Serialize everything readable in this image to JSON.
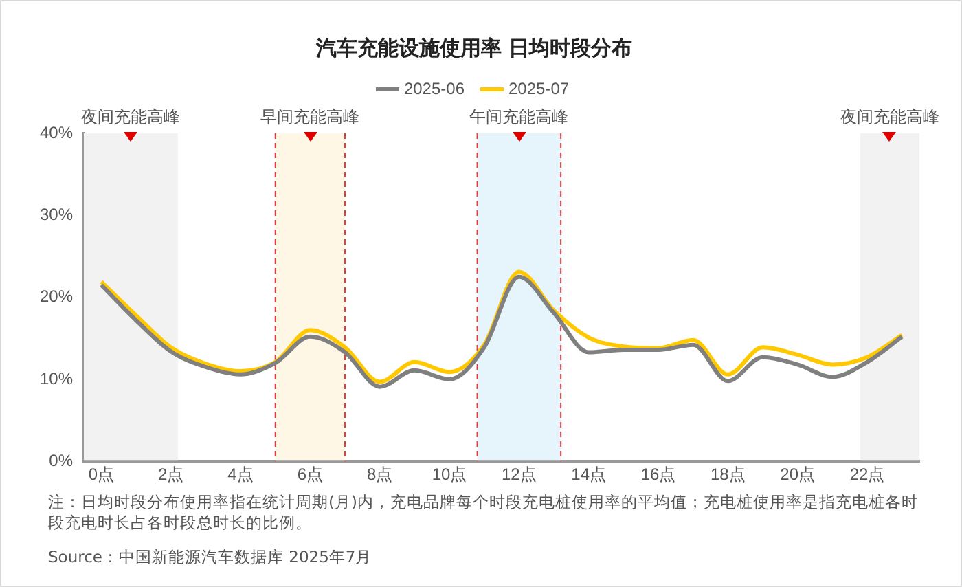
{
  "chart_data": {
    "type": "line",
    "title": "汽车充能设施使用率 日均时段分布",
    "x": [
      0,
      1,
      2,
      3,
      4,
      5,
      6,
      7,
      8,
      9,
      10,
      11,
      12,
      13,
      14,
      15,
      16,
      17,
      18,
      19,
      20,
      21,
      22,
      23
    ],
    "series": [
      {
        "name": "2025-06",
        "color": "#808080",
        "values": [
          21.5,
          17.2,
          13.4,
          11.5,
          10.6,
          12.0,
          15.2,
          13.3,
          9.1,
          11.1,
          10.0,
          13.9,
          22.5,
          18.1,
          13.3,
          13.6,
          13.6,
          14.2,
          9.8,
          12.7,
          11.8,
          10.3,
          12.1,
          15.2
        ]
      },
      {
        "name": "2025-07",
        "color": "#ffc800",
        "values": [
          21.9,
          17.8,
          13.9,
          11.9,
          11.0,
          12.1,
          16.0,
          13.9,
          9.7,
          12.1,
          10.9,
          14.2,
          23.1,
          18.4,
          15.1,
          14.0,
          13.8,
          14.8,
          10.6,
          13.9,
          13.0,
          11.8,
          12.7,
          15.4
        ]
      }
    ],
    "xlim": [
      -0.5,
      23.5
    ],
    "xticks": [
      {
        "value": 0,
        "label": "0点"
      },
      {
        "value": 2,
        "label": "2点"
      },
      {
        "value": 4,
        "label": "4点"
      },
      {
        "value": 6,
        "label": "6点"
      },
      {
        "value": 8,
        "label": "8点"
      },
      {
        "value": 10,
        "label": "10点"
      },
      {
        "value": 12,
        "label": "12点"
      },
      {
        "value": 14,
        "label": "14点"
      },
      {
        "value": 16,
        "label": "16点"
      },
      {
        "value": 18,
        "label": "18点"
      },
      {
        "value": 20,
        "label": "20点"
      },
      {
        "value": 22,
        "label": "22点"
      }
    ],
    "ylim": [
      0,
      40
    ],
    "yticks": [
      {
        "value": 0,
        "label": "0%"
      },
      {
        "value": 10,
        "label": "10%"
      },
      {
        "value": 20,
        "label": "20%"
      },
      {
        "value": 30,
        "label": "30%"
      },
      {
        "value": 40,
        "label": "40%"
      }
    ],
    "bands": [
      {
        "axis": "x",
        "from": -0.5,
        "to": 2.2,
        "label": "夜间充能高峰",
        "color": "#f2f2f2"
      },
      {
        "axis": "x",
        "from": 5,
        "to": 7,
        "label": "早间充能高峰",
        "color": "#fff7e6"
      },
      {
        "axis": "x",
        "from": 10.8,
        "to": 13.2,
        "label": "午间充能高峰",
        "color": "#e6f4fb"
      },
      {
        "axis": "x",
        "from": 21.8,
        "to": 23.5,
        "label": "夜间充能高峰",
        "color": "#f2f2f2"
      }
    ],
    "ref_lines": [
      {
        "axis": "x",
        "value": 5,
        "color": "#e83a3a",
        "line_style": "dashed"
      },
      {
        "axis": "x",
        "value": 7,
        "color": "#e83a3a",
        "line_style": "dashed"
      },
      {
        "axis": "x",
        "value": 10.8,
        "color": "#e83a3a",
        "line_style": "dashed"
      },
      {
        "axis": "x",
        "value": 13.2,
        "color": "#e83a3a",
        "line_style": "dashed"
      }
    ],
    "annotations": [
      "注：日均时段分布使用率指在统计周期(月)内，充电品牌每个时段充电桩使用率的平均值；充电桩使用率是指充电桩各时段充电时长占各时段总时长的比例。",
      "Source：中国新能源汽车数据库 2025年7月"
    ],
    "grid": false,
    "legend": "top",
    "marker": "none",
    "line_style": "solid"
  }
}
